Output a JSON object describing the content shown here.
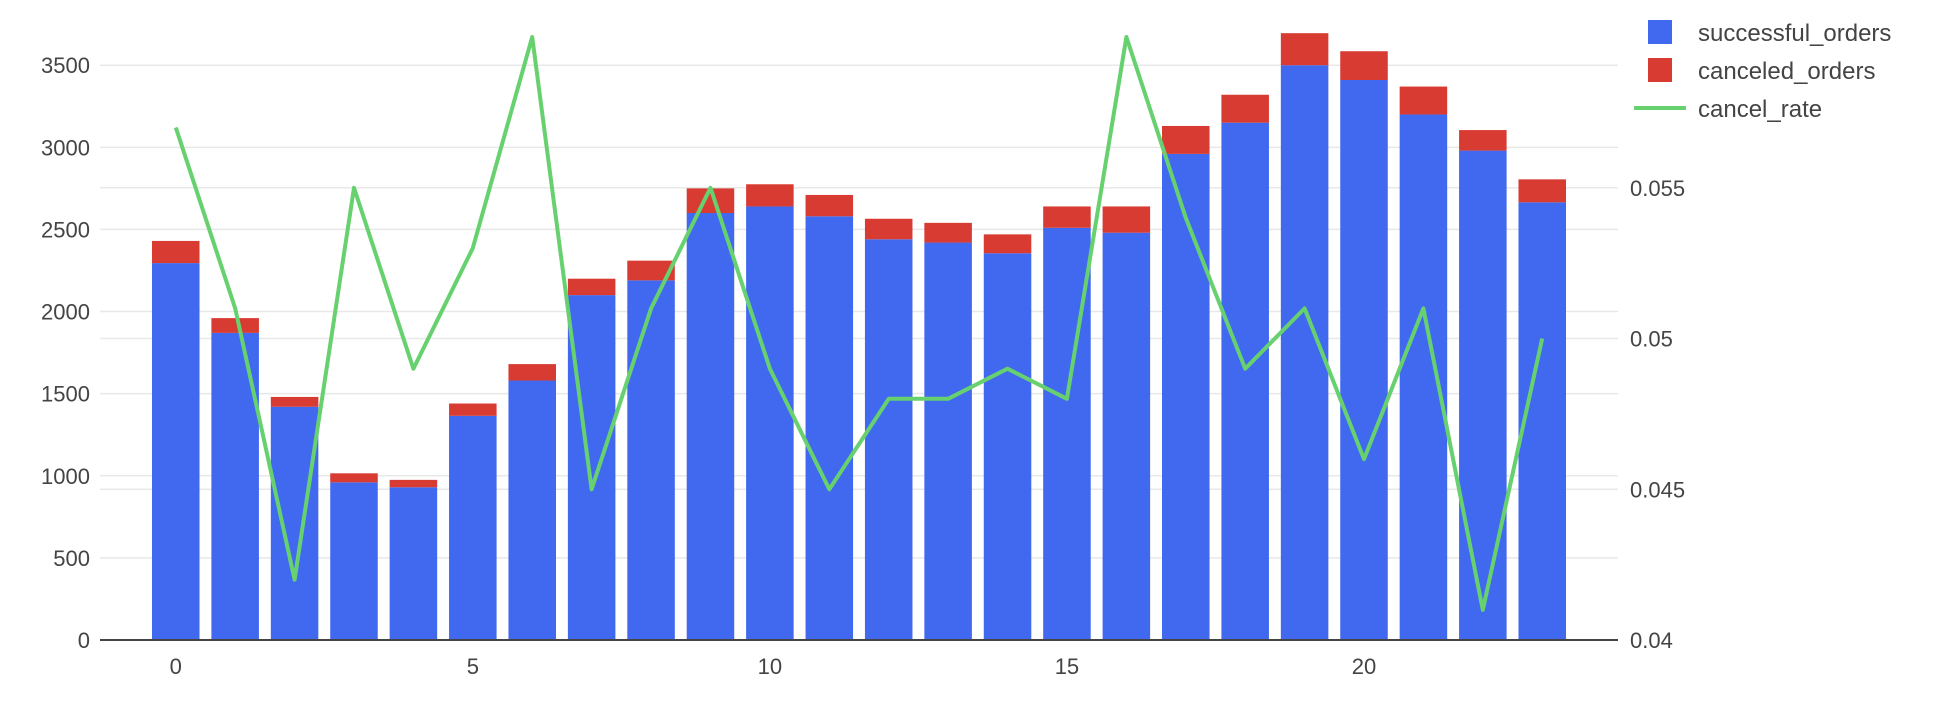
{
  "chart_data": {
    "type": "bar",
    "stacked": true,
    "x": [
      0,
      1,
      2,
      3,
      4,
      5,
      6,
      7,
      8,
      9,
      10,
      11,
      12,
      13,
      14,
      15,
      16,
      17,
      18,
      19,
      20,
      21,
      22,
      23
    ],
    "series": [
      {
        "name": "successful_orders",
        "kind": "bar",
        "axis": "y",
        "values": [
          2295,
          1870,
          1420,
          960,
          930,
          1365,
          1580,
          2100,
          2190,
          2600,
          2640,
          2580,
          2440,
          2420,
          2355,
          2510,
          2480,
          2960,
          3150,
          3500,
          3410,
          3200,
          2980,
          2665
        ]
      },
      {
        "name": "canceled_orders",
        "kind": "bar",
        "axis": "y",
        "values": [
          135,
          90,
          60,
          55,
          45,
          75,
          100,
          100,
          120,
          150,
          135,
          130,
          125,
          120,
          115,
          130,
          160,
          170,
          170,
          195,
          175,
          170,
          125,
          140
        ]
      },
      {
        "name": "cancel_rate",
        "kind": "line",
        "axis": "y2",
        "values": [
          0.057,
          0.051,
          0.042,
          0.055,
          0.049,
          0.053,
          0.06,
          0.045,
          0.051,
          0.055,
          0.049,
          0.045,
          0.048,
          0.048,
          0.049,
          0.048,
          0.06,
          0.054,
          0.049,
          0.051,
          0.046,
          0.051,
          0.041,
          0.05
        ]
      }
    ],
    "x_ticks": [
      0,
      5,
      10,
      15,
      20
    ],
    "y_ticks": [
      0,
      500,
      1000,
      1500,
      2000,
      2500,
      3000,
      3500
    ],
    "y2_ticks": [
      0.04,
      0.045,
      0.05,
      0.055
    ],
    "xlim": [
      -1.275,
      24.275
    ],
    "ylim": [
      0,
      3690
    ],
    "y2lim": [
      0.04,
      0.0601
    ],
    "xlabel": "",
    "ylabel": "",
    "legend_position": "top-right",
    "grid": true,
    "colors": {
      "successful_orders": "#4169f0",
      "canceled_orders": "#d73b32",
      "cancel_rate": "#66d16e",
      "grid": "#e8e8e8",
      "axis": "#444444"
    }
  }
}
